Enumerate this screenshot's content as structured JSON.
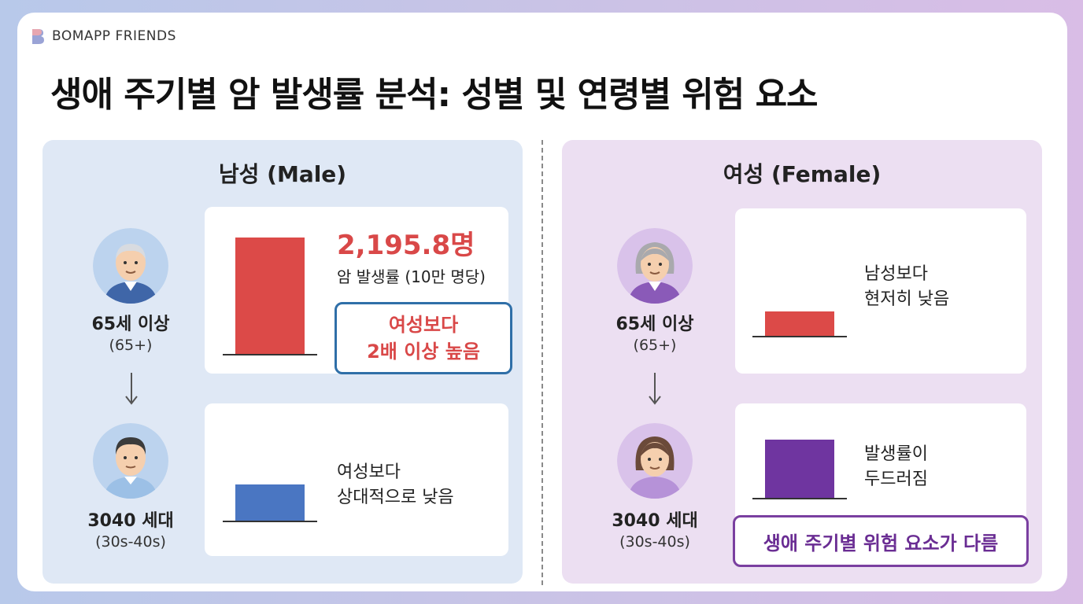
{
  "brand": {
    "name": "BOMAPP FRIENDS",
    "logo_icon": "bomapp-logo-icon"
  },
  "title": "생애 주기별 암 발생률 분석: 성별 및 연령별 위험 요소",
  "male": {
    "heading": "남성 (Male)",
    "senior": {
      "label": "65세 이상",
      "sub": "(65+)",
      "avatar_icon": "elderly-man-icon"
    },
    "young": {
      "label": "3040 세대",
      "sub": "(30s-40s)",
      "avatar_icon": "middle-aged-man-icon"
    },
    "senior_stat": {
      "value": "2,195.8명",
      "unit_label": "암 발생률 (10만 명당)",
      "bar_color": "#dc4a48",
      "bar_level": 1.0
    },
    "senior_callout": "여성보다\n2배 이상 높음",
    "young_desc": "여성보다\n상대적으로 낮음",
    "young_bar": {
      "bar_color": "#4a76c2",
      "bar_level": 0.31
    }
  },
  "female": {
    "heading": "여성 (Female)",
    "senior": {
      "label": "65세 이상",
      "sub": "(65+)",
      "avatar_icon": "elderly-woman-icon"
    },
    "young": {
      "label": "3040 세대",
      "sub": "(30s-40s)",
      "avatar_icon": "middle-aged-woman-icon"
    },
    "senior_desc": "남성보다\n현저히 낮음",
    "senior_bar": {
      "bar_color": "#dc4a48",
      "bar_level": 0.21
    },
    "young_desc": "발생률이\n두드러짐",
    "young_bar": {
      "bar_color": "#6f35a0",
      "bar_level": 0.5
    },
    "young_callout": "생애 주기별 위험 요소가 다름"
  },
  "colors": {
    "male_panel": "#dfe8f5",
    "female_panel": "#ecdff2",
    "accent_red": "#d94848",
    "accent_blue": "#2f6fa8",
    "accent_purple": "#7a3fa0"
  }
}
